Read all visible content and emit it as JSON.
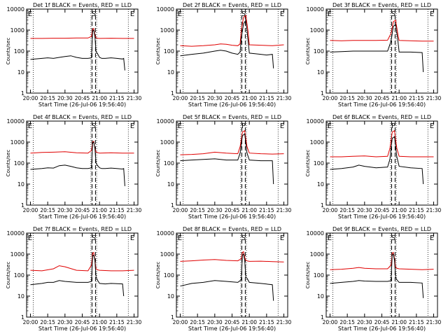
{
  "chart_data": [
    {
      "type": "line",
      "title": "Det 1f BLACK = Events, RED = LLD",
      "xlabel": "Start Time (26-Jul-06 19:56:40)",
      "ylabel": "Counts/sec",
      "x_ticks": [
        "20:00",
        "20:15",
        "20:30",
        "20:45",
        "21:00",
        "21:15",
        "21:30"
      ],
      "xlim": [
        -3.33,
        93.33
      ],
      "ylim": [
        1,
        10000
      ],
      "y_scale": "log",
      "y_ticks": [
        "1",
        "10",
        "100",
        "1000",
        "10000"
      ],
      "letters": [
        "E",
        "S",
        "E"
      ],
      "series": [
        {
          "name": "BLACK",
          "color": "#000000",
          "x": [
            0,
            10,
            15,
            20,
            25,
            30,
            35,
            40,
            45,
            50,
            53,
            54,
            55,
            56,
            57,
            58,
            60,
            62,
            65,
            70,
            75,
            80,
            81,
            82
          ],
          "values": [
            40,
            45,
            48,
            45,
            50,
            55,
            60,
            50,
            45,
            45,
            48,
            900,
            1000,
            500,
            90,
            80,
            50,
            45,
            45,
            48,
            45,
            42,
            45,
            12
          ]
        },
        {
          "name": "RED",
          "color": "#e00000",
          "x": [
            0,
            10,
            20,
            30,
            40,
            50,
            53,
            54,
            55,
            56,
            57,
            58,
            60,
            70,
            80,
            90
          ],
          "values": [
            400,
            400,
            410,
            410,
            420,
            420,
            500,
            1100,
            1200,
            600,
            430,
            410,
            400,
            410,
            400,
            400
          ]
        }
      ]
    },
    {
      "type": "line",
      "title": "Det 2f BLACK = Events, RED = LLD",
      "xlabel": "Start Time (26-Jul-06 19:56:40)",
      "ylabel": "Counts/sec",
      "x_ticks": [
        "20:00",
        "20:15",
        "20:30",
        "20:45",
        "21:00",
        "21:15",
        "21:30"
      ],
      "xlim": [
        -3.33,
        93.33
      ],
      "ylim": [
        1,
        10000
      ],
      "y_scale": "log",
      "y_ticks": [
        "1",
        "10",
        "100",
        "1000",
        "10000"
      ],
      "letters": [
        "E",
        "S",
        "E"
      ],
      "series": [
        {
          "name": "BLACK",
          "color": "#000000",
          "x": [
            0,
            10,
            20,
            30,
            35,
            40,
            45,
            50,
            52,
            53,
            55,
            57,
            59,
            60,
            65,
            70,
            75,
            80,
            81
          ],
          "values": [
            60,
            70,
            80,
            100,
            110,
            100,
            80,
            70,
            90,
            400,
            2000,
            3000,
            300,
            80,
            75,
            70,
            65,
            70,
            15
          ]
        },
        {
          "name": "RED",
          "color": "#e00000",
          "x": [
            0,
            10,
            20,
            30,
            35,
            40,
            45,
            50,
            52,
            53,
            55,
            57,
            59,
            60,
            70,
            80,
            90
          ],
          "values": [
            180,
            170,
            180,
            200,
            220,
            210,
            190,
            180,
            220,
            1000,
            4000,
            5000,
            800,
            200,
            190,
            180,
            200
          ]
        }
      ]
    },
    {
      "type": "line",
      "title": "Det 3f BLACK = Events, RED = LLD",
      "xlabel": "Start Time (26-Jul-06 19:56:40)",
      "ylabel": "Counts/sec",
      "x_ticks": [
        "20:00",
        "20:15",
        "20:30",
        "20:45",
        "21:00",
        "21:15",
        "21:30"
      ],
      "xlim": [
        -3.33,
        93.33
      ],
      "ylim": [
        1,
        10000
      ],
      "y_scale": "log",
      "y_ticks": [
        "1",
        "10",
        "100",
        "1000",
        "10000"
      ],
      "letters": [
        "E",
        "S",
        "E"
      ],
      "series": [
        {
          "name": "BLACK",
          "color": "#000000",
          "x": [
            0,
            10,
            20,
            30,
            40,
            50,
            53,
            55,
            57,
            59,
            60,
            70,
            80,
            81
          ],
          "values": [
            90,
            95,
            100,
            100,
            100,
            100,
            300,
            1500,
            1800,
            300,
            90,
            90,
            85,
            10
          ]
        },
        {
          "name": "RED",
          "color": "#e00000",
          "x": [
            0,
            10,
            20,
            30,
            40,
            50,
            53,
            55,
            57,
            59,
            60,
            70,
            80,
            90
          ],
          "values": [
            320,
            310,
            320,
            320,
            320,
            330,
            700,
            2500,
            3000,
            600,
            320,
            310,
            300,
            300
          ]
        }
      ]
    },
    {
      "type": "line",
      "title": "Det 4f BLACK = Events, RED = LLD",
      "xlabel": "Start Time (26-Jul-06 19:56:40)",
      "ylabel": "Counts/sec",
      "x_ticks": [
        "20:00",
        "20:15",
        "20:30",
        "20:45",
        "21:00",
        "21:15",
        "21:30"
      ],
      "xlim": [
        -3.33,
        93.33
      ],
      "ylim": [
        1,
        10000
      ],
      "y_scale": "log",
      "y_ticks": [
        "1",
        "10",
        "100",
        "1000",
        "10000"
      ],
      "letters": [
        "E",
        "S",
        "E"
      ],
      "series": [
        {
          "name": "BLACK",
          "color": "#000000",
          "x": [
            0,
            10,
            15,
            20,
            25,
            30,
            35,
            40,
            45,
            50,
            53,
            54,
            55,
            56,
            57,
            58,
            60,
            62,
            65,
            70,
            75,
            80,
            81,
            82
          ],
          "values": [
            50,
            55,
            60,
            58,
            75,
            80,
            70,
            60,
            55,
            55,
            60,
            900,
            1000,
            500,
            100,
            80,
            60,
            55,
            55,
            58,
            55,
            52,
            55,
            8
          ]
        },
        {
          "name": "RED",
          "color": "#e00000",
          "x": [
            0,
            10,
            20,
            30,
            40,
            50,
            53,
            54,
            55,
            56,
            57,
            58,
            60,
            70,
            80,
            90
          ],
          "values": [
            300,
            320,
            330,
            350,
            310,
            300,
            400,
            1000,
            1100,
            500,
            340,
            320,
            300,
            310,
            300,
            300
          ]
        }
      ]
    },
    {
      "type": "line",
      "title": "Det 5f BLACK = Events, RED = LLD",
      "xlabel": "Start Time (26-Jul-06 19:56:40)",
      "ylabel": "Counts/sec",
      "x_ticks": [
        "20:00",
        "20:15",
        "20:30",
        "20:45",
        "21:00",
        "21:15",
        "21:30"
      ],
      "xlim": [
        -3.33,
        93.33
      ],
      "ylim": [
        1,
        10000
      ],
      "y_scale": "log",
      "y_ticks": [
        "1",
        "10",
        "100",
        "1000",
        "10000"
      ],
      "letters": [
        "E",
        "P",
        "E"
      ],
      "series": [
        {
          "name": "BLACK",
          "color": "#000000",
          "x": [
            0,
            10,
            20,
            30,
            40,
            50,
            52,
            54,
            56,
            58,
            60,
            70,
            80,
            81
          ],
          "values": [
            130,
            140,
            150,
            160,
            140,
            140,
            300,
            2000,
            2500,
            300,
            140,
            130,
            130,
            10
          ]
        },
        {
          "name": "RED",
          "color": "#e00000",
          "x": [
            0,
            10,
            20,
            30,
            40,
            50,
            52,
            54,
            56,
            58,
            60,
            70,
            80,
            90
          ],
          "values": [
            250,
            260,
            280,
            330,
            300,
            280,
            600,
            3000,
            3500,
            600,
            300,
            280,
            270,
            280
          ]
        }
      ]
    },
    {
      "type": "line",
      "title": "Det 6f BLACK = Events, RED = LLD",
      "xlabel": "Start Time (26-Jul-06 19:56:40)",
      "ylabel": "Counts/sec",
      "x_ticks": [
        "20:00",
        "20:15",
        "20:30",
        "20:45",
        "21:00",
        "21:15",
        "21:30"
      ],
      "xlim": [
        -3.33,
        93.33
      ],
      "ylim": [
        1,
        10000
      ],
      "y_scale": "log",
      "y_ticks": [
        "1",
        "10",
        "100",
        "1000",
        "10000"
      ],
      "letters": [
        "E",
        "P",
        "E"
      ],
      "series": [
        {
          "name": "BLACK",
          "color": "#000000",
          "x": [
            0,
            10,
            20,
            25,
            30,
            40,
            50,
            52,
            54,
            56,
            58,
            60,
            70,
            80,
            81
          ],
          "values": [
            50,
            55,
            65,
            80,
            70,
            60,
            65,
            150,
            1500,
            1800,
            200,
            70,
            60,
            55,
            10
          ]
        },
        {
          "name": "RED",
          "color": "#e00000",
          "x": [
            0,
            10,
            20,
            30,
            40,
            50,
            52,
            54,
            56,
            58,
            60,
            70,
            80,
            90
          ],
          "values": [
            200,
            200,
            210,
            220,
            200,
            210,
            500,
            3000,
            3500,
            500,
            210,
            200,
            200,
            200
          ]
        }
      ]
    },
    {
      "type": "line",
      "title": "Det 7f BLACK = Events, RED = LLD",
      "xlabel": "Start Time (26-Jul-06 19:56:40)",
      "ylabel": "Counts/sec",
      "x_ticks": [
        "20:00",
        "20:15",
        "20:30",
        "20:45",
        "21:00",
        "21:15",
        "21:30"
      ],
      "xlim": [
        -3.33,
        93.33
      ],
      "ylim": [
        1,
        10000
      ],
      "y_scale": "log",
      "y_ticks": [
        "1",
        "10",
        "100",
        "1000",
        "10000"
      ],
      "letters": [
        "E",
        "S",
        "E"
      ],
      "series": [
        {
          "name": "BLACK",
          "color": "#000000",
          "x": [
            0,
            10,
            15,
            20,
            25,
            30,
            40,
            50,
            53,
            54,
            55,
            56,
            57,
            58,
            60,
            65,
            70,
            80,
            81
          ],
          "values": [
            35,
            40,
            45,
            45,
            55,
            50,
            45,
            45,
            50,
            800,
            900,
            500,
            80,
            60,
            40,
            38,
            40,
            38,
            10
          ]
        },
        {
          "name": "RED",
          "color": "#e00000",
          "x": [
            0,
            10,
            20,
            25,
            30,
            40,
            50,
            53,
            54,
            55,
            56,
            57,
            58,
            60,
            70,
            80,
            90
          ],
          "values": [
            170,
            160,
            200,
            280,
            250,
            170,
            160,
            300,
            1100,
            1200,
            500,
            200,
            180,
            170,
            160,
            160,
            170
          ]
        }
      ]
    },
    {
      "type": "line",
      "title": "Det 8f BLACK = Events, RED = LLD",
      "xlabel": "Start Time (26-Jul-06 19:56:40)",
      "ylabel": "Counts/sec",
      "x_ticks": [
        "20:00",
        "20:15",
        "20:30",
        "20:45",
        "21:00",
        "21:15",
        "21:30"
      ],
      "xlim": [
        -3.33,
        93.33
      ],
      "ylim": [
        1,
        10000
      ],
      "y_scale": "log",
      "y_ticks": [
        "1",
        "10",
        "100",
        "1000",
        "10000"
      ],
      "letters": [
        "E",
        "S",
        "E"
      ],
      "series": [
        {
          "name": "BLACK",
          "color": "#000000",
          "x": [
            0,
            10,
            20,
            30,
            40,
            50,
            53,
            54,
            55,
            56,
            57,
            58,
            60,
            70,
            80,
            81
          ],
          "values": [
            30,
            40,
            45,
            55,
            50,
            45,
            60,
            900,
            1000,
            500,
            80,
            70,
            45,
            40,
            35,
            6
          ]
        },
        {
          "name": "RED",
          "color": "#e00000",
          "x": [
            0,
            10,
            20,
            30,
            40,
            50,
            53,
            54,
            55,
            56,
            57,
            58,
            60,
            70,
            80,
            90
          ],
          "values": [
            450,
            480,
            520,
            550,
            500,
            480,
            600,
            1200,
            1300,
            700,
            500,
            480,
            450,
            460,
            440,
            420
          ]
        }
      ]
    },
    {
      "type": "line",
      "title": "Det 9f BLACK = Events, RED = LLD",
      "xlabel": "Start Time (26-Jul-06 19:56:40)",
      "ylabel": "Counts/sec",
      "x_ticks": [
        "20:00",
        "20:15",
        "20:30",
        "20:45",
        "21:00",
        "21:15",
        "21:30"
      ],
      "xlim": [
        -3.33,
        93.33
      ],
      "ylim": [
        1,
        10000
      ],
      "y_scale": "log",
      "y_ticks": [
        "1",
        "10",
        "100",
        "1000",
        "10000"
      ],
      "letters": [
        "E",
        "S",
        "E"
      ],
      "series": [
        {
          "name": "BLACK",
          "color": "#000000",
          "x": [
            0,
            10,
            20,
            25,
            30,
            40,
            50,
            53,
            54,
            55,
            56,
            57,
            58,
            60,
            70,
            80,
            81
          ],
          "values": [
            40,
            45,
            50,
            55,
            52,
            50,
            50,
            55,
            900,
            1000,
            500,
            80,
            60,
            45,
            45,
            42,
            8
          ]
        },
        {
          "name": "RED",
          "color": "#e00000",
          "x": [
            0,
            10,
            20,
            25,
            30,
            40,
            50,
            53,
            54,
            55,
            56,
            57,
            58,
            60,
            70,
            80,
            90
          ],
          "values": [
            180,
            190,
            210,
            230,
            210,
            200,
            200,
            300,
            1100,
            1200,
            600,
            230,
            210,
            200,
            190,
            180,
            190
          ]
        }
      ]
    }
  ]
}
